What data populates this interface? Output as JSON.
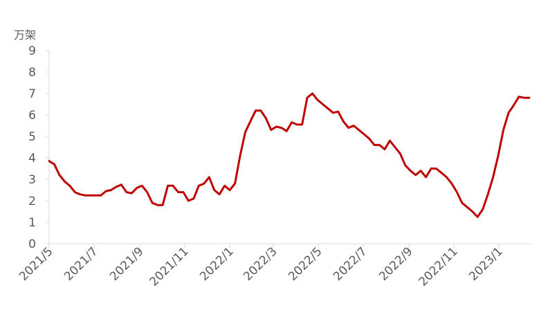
{
  "chart_data": {
    "type": "line",
    "title": "",
    "xlabel": "",
    "ylabel": "",
    "unit_label": "万架",
    "ylim": [
      0,
      9
    ],
    "yticks": [
      "0",
      "1",
      "2",
      "3",
      "4",
      "5",
      "6",
      "7",
      "8",
      "9"
    ],
    "grid": false,
    "legend": "none",
    "x_tick_labels": [
      "2021/5",
      "2021/7",
      "2021/9",
      "2021/11",
      "2022/1",
      "2022/3",
      "2022/5",
      "2022/7",
      "2022/9",
      "2022/11",
      "2023/1"
    ],
    "x_tick_dates": [
      "2021-05-01",
      "2021-07-01",
      "2021-09-01",
      "2021-11-01",
      "2022-01-01",
      "2022-03-01",
      "2022-05-01",
      "2022-07-01",
      "2022-09-01",
      "2022-11-01",
      "2023-01-01"
    ],
    "x_start": "2021-05-01",
    "x_end": "2023-02-14",
    "series": [
      {
        "color": "#c00000",
        "x": [
          "2021-05-01",
          "2021-05-08",
          "2021-05-15",
          "2021-05-22",
          "2021-05-29",
          "2021-06-05",
          "2021-06-12",
          "2021-06-19",
          "2021-06-26",
          "2021-07-03",
          "2021-07-10",
          "2021-07-17",
          "2021-07-24",
          "2021-07-31",
          "2021-08-07",
          "2021-08-14",
          "2021-08-21",
          "2021-08-28",
          "2021-09-04",
          "2021-09-11",
          "2021-09-18",
          "2021-09-25",
          "2021-10-02",
          "2021-10-09",
          "2021-10-16",
          "2021-10-23",
          "2021-10-30",
          "2021-11-06",
          "2021-11-13",
          "2021-11-20",
          "2021-11-27",
          "2021-12-04",
          "2021-12-11",
          "2021-12-18",
          "2021-12-25",
          "2022-01-01",
          "2022-01-08",
          "2022-01-15",
          "2022-01-22",
          "2022-01-29",
          "2022-02-05",
          "2022-02-12",
          "2022-02-19",
          "2022-02-26",
          "2022-03-05",
          "2022-03-12",
          "2022-03-19",
          "2022-03-26",
          "2022-04-02",
          "2022-04-09",
          "2022-04-16",
          "2022-04-23",
          "2022-04-30",
          "2022-05-07",
          "2022-05-14",
          "2022-05-21",
          "2022-05-28",
          "2022-06-04",
          "2022-06-11",
          "2022-06-18",
          "2022-06-25",
          "2022-07-02",
          "2022-07-09",
          "2022-07-16",
          "2022-07-23",
          "2022-07-30",
          "2022-08-06",
          "2022-08-13",
          "2022-08-20",
          "2022-08-27",
          "2022-09-03",
          "2022-09-10",
          "2022-09-17",
          "2022-09-24",
          "2022-10-01",
          "2022-10-08",
          "2022-10-15",
          "2022-10-22",
          "2022-10-29",
          "2022-11-05",
          "2022-11-12",
          "2022-11-19",
          "2022-11-26",
          "2022-12-03",
          "2022-12-10",
          "2022-12-17",
          "2022-12-24",
          "2022-12-31",
          "2023-01-07",
          "2023-01-14",
          "2023-01-21",
          "2023-01-28",
          "2023-02-04",
          "2023-02-11"
        ],
        "values": [
          3.85,
          3.7,
          3.2,
          2.9,
          2.7,
          2.4,
          2.3,
          2.25,
          2.25,
          2.25,
          2.25,
          2.45,
          2.5,
          2.65,
          2.75,
          2.4,
          2.35,
          2.6,
          2.7,
          2.4,
          1.9,
          1.8,
          1.8,
          2.7,
          2.7,
          2.4,
          2.4,
          2.0,
          2.1,
          2.7,
          2.8,
          3.1,
          2.5,
          2.3,
          2.7,
          2.5,
          2.8,
          4.1,
          5.2,
          5.7,
          6.2,
          6.2,
          5.85,
          5.3,
          5.45,
          5.4,
          5.25,
          5.65,
          5.55,
          5.55,
          6.8,
          7.0,
          6.7,
          6.5,
          6.3,
          6.1,
          6.15,
          5.7,
          5.4,
          5.5,
          5.3,
          5.1,
          4.9,
          4.6,
          4.6,
          4.4,
          4.8,
          4.5,
          4.2,
          3.65,
          3.4,
          3.2,
          3.4,
          3.1,
          3.5,
          3.5,
          3.3,
          3.1,
          2.8,
          2.4,
          1.9,
          1.7,
          1.5,
          1.25,
          1.6,
          2.3,
          3.1,
          4.1,
          5.3,
          6.1,
          6.45,
          6.85,
          6.8,
          6.8
        ]
      }
    ]
  }
}
